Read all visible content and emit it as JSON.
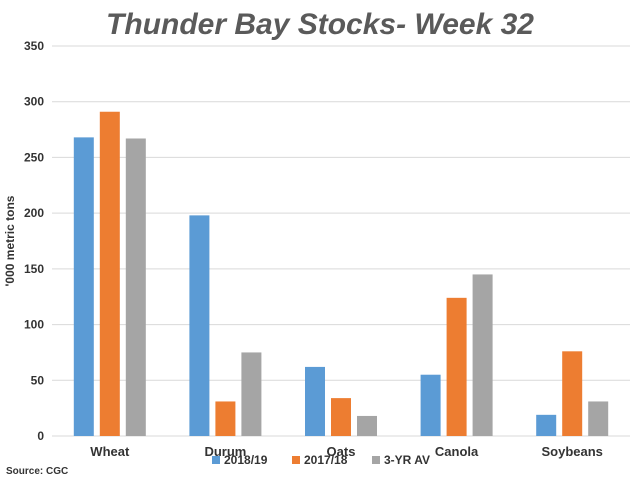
{
  "chart_data": {
    "type": "bar",
    "title": "Thunder Bay Stocks- Week 32",
    "ylabel": "'000 metric tons",
    "xlabel": "",
    "ylim": [
      0,
      350
    ],
    "yticks": [
      0,
      50,
      100,
      150,
      200,
      250,
      300,
      350
    ],
    "grid": true,
    "legend_position": "bottom",
    "categories": [
      "Wheat",
      "Durum",
      "Oats",
      "Canola",
      "Soybeans"
    ],
    "series": [
      {
        "name": "2018/19",
        "color": "#5b9bd5",
        "values": [
          268,
          198,
          62,
          55,
          19
        ]
      },
      {
        "name": "2017/18",
        "color": "#ed7d31",
        "values": [
          291,
          31,
          34,
          124,
          76
        ]
      },
      {
        "name": "3-YR AV",
        "color": "#a5a5a5",
        "values": [
          267,
          75,
          18,
          145,
          31
        ]
      }
    ]
  },
  "source": "Source: CGC"
}
